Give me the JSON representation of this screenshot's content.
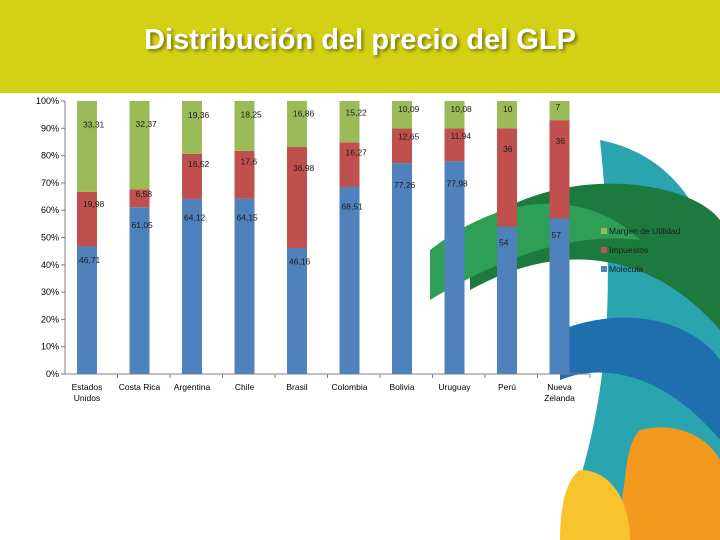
{
  "slide": {
    "title": "Distribución del precio del GLP",
    "colors": {
      "title_bar": "#d4d015",
      "title_text": "#ffffff"
    }
  },
  "chart_data": {
    "type": "bar",
    "stacked": true,
    "percent": true,
    "title": "",
    "xlabel": "",
    "ylabel": "",
    "ylim": [
      0,
      100
    ],
    "yticks": [
      "0%",
      "10%",
      "20%",
      "30%",
      "40%",
      "50%",
      "60%",
      "70%",
      "80%",
      "90%",
      "100%"
    ],
    "grid": false,
    "legend_position": "right",
    "categories": [
      [
        "Estados",
        "Unidos"
      ],
      [
        "Costa Rica"
      ],
      [
        "Argentina"
      ],
      [
        "Chile"
      ],
      [
        "Brasil"
      ],
      [
        "Colombia"
      ],
      [
        "Bolivia"
      ],
      [
        "Uruguay"
      ],
      [
        "Perú"
      ],
      [
        "Nueva",
        "Zelanda"
      ]
    ],
    "series": [
      {
        "name": "Molecula",
        "color": "#4f81bd",
        "values": [
          46.71,
          61.05,
          64.12,
          64.15,
          46.16,
          68.51,
          77.26,
          77.98,
          54,
          57
        ],
        "labels": [
          "46,71",
          "61,05",
          "64,12",
          "64,15",
          "46,16",
          "68,51",
          "77,26",
          "77,98",
          "54",
          "57"
        ]
      },
      {
        "name": "Impuestos",
        "color": "#c0504d",
        "values": [
          19.98,
          6.58,
          16.52,
          17.6,
          36.98,
          16.27,
          12.65,
          11.94,
          36,
          36
        ],
        "labels": [
          "19,98",
          "6,58",
          "16,52",
          "17,6",
          "36,98",
          "16,27",
          "12,65",
          "11,94",
          "36",
          "36"
        ]
      },
      {
        "name": "Margen de Utilidad",
        "color": "#9bbb59",
        "values": [
          33.31,
          32.37,
          19.36,
          18.25,
          16.86,
          15.22,
          10.09,
          10.08,
          10,
          7
        ],
        "labels": [
          "33,31",
          "32,37",
          "19,36",
          "18,25",
          "16,86",
          "15,22",
          "10,09",
          "10,08",
          "10",
          "7"
        ]
      }
    ]
  }
}
